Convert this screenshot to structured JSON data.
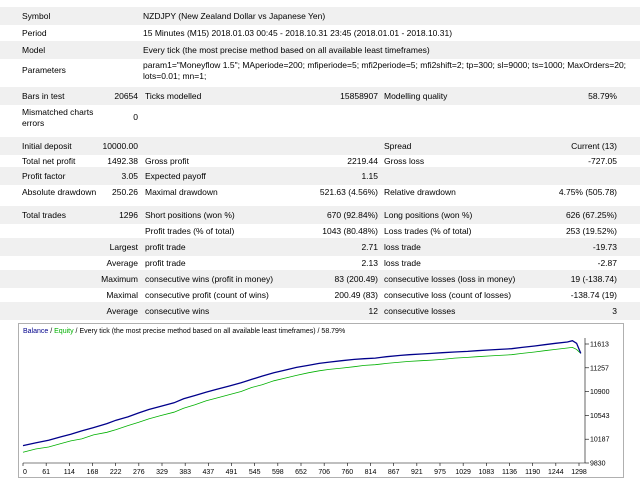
{
  "report": {
    "symbol": {
      "label": "Symbol",
      "value": "NZDJPY (New Zealand Dollar vs Japanese Yen)"
    },
    "period": {
      "label": "Period",
      "value": "15 Minutes (M15) 2018.01.03 00:45 - 2018.10.31 23:45 (2018.01.01 - 2018.10.31)"
    },
    "model": {
      "label": "Model",
      "value": "Every tick (the most precise method based on all available least timeframes)"
    },
    "parameters": {
      "label": "Parameters",
      "line1": "param1=\"Moneyflow 1.5\"; MAperiode=200; mfiperiode=5; mfi2periode=5; mfi2shift=2; tp=300; sl=9000; ts=1000; MaxOrders=20;",
      "line2": "lots=0.01; mn=1;"
    },
    "bars": {
      "label": "Bars in test",
      "value": "20654",
      "ticks_label": "Ticks modelled",
      "ticks_value": "15858907",
      "quality_label": "Modelling quality",
      "quality_value": "58.79%"
    },
    "mismatched": {
      "label_line1": "Mismatched charts",
      "label_line2": "errors",
      "value": "0"
    },
    "deposit": {
      "label": "Initial deposit",
      "value": "10000.00",
      "spread_label": "Spread",
      "spread_value": "Current (13)"
    },
    "net": {
      "label": "Total net profit",
      "value": "1492.38",
      "gp_label": "Gross profit",
      "gp_value": "2219.44",
      "gl_label": "Gross loss",
      "gl_value": "-727.05"
    },
    "pf": {
      "label": "Profit factor",
      "value": "3.05",
      "ep_label": "Expected payoff",
      "ep_value": "1.15"
    },
    "dd": {
      "label": "Absolute drawdown",
      "value": "250.26",
      "max_label": "Maximal drawdown",
      "max_value": "521.63 (4.56%)",
      "rel_label": "Relative drawdown",
      "rel_value": "4.75% (505.78)"
    },
    "trades": {
      "label": "Total trades",
      "value": "1296",
      "short_label": "Short positions (won %)",
      "short_value": "670 (92.84%)",
      "long_label": "Long positions (won %)",
      "long_value": "626 (67.25%)"
    },
    "ptrades": {
      "profit_label": "Profit trades (% of total)",
      "profit_value": "1043 (80.48%)",
      "loss_label": "Loss trades (% of total)",
      "loss_value": "253 (19.52%)"
    },
    "largest": {
      "prefix": "Largest",
      "profit_label": "profit trade",
      "profit_value": "2.71",
      "loss_label": "loss trade",
      "loss_value": "-19.73"
    },
    "average": {
      "prefix": "Average",
      "profit_label": "profit trade",
      "profit_value": "2.13",
      "loss_label": "loss trade",
      "loss_value": "-2.87"
    },
    "maximum": {
      "prefix": "Maximum",
      "wins_label": "consecutive wins (profit in money)",
      "wins_value": "83 (200.49)",
      "losses_label": "consecutive losses (loss in money)",
      "losses_value": "19 (-138.74)"
    },
    "maximal": {
      "prefix": "Maximal",
      "profit_label": "consecutive profit (count of wins)",
      "profit_value": "200.49 (83)",
      "loss_label": "consecutive loss (count of losses)",
      "loss_value": "-138.74 (19)"
    },
    "avgcons": {
      "prefix": "Average",
      "wins_label": "consecutive wins",
      "wins_value": "12",
      "losses_label": "consecutive losses",
      "losses_value": "3"
    }
  },
  "chart_data": {
    "type": "line",
    "legend_balance": "Balance",
    "legend_sep": " / ",
    "legend_equity": "Equity",
    "legend_rest": " / Every tick (the most precise method based on all available least timeframes) / 58.79%",
    "y_ticks": [
      "11613",
      "11257",
      "10900",
      "10543",
      "10187",
      "9830"
    ],
    "x_ticks": [
      "0",
      "61",
      "114",
      "168",
      "222",
      "276",
      "329",
      "383",
      "437",
      "491",
      "545",
      "598",
      "652",
      "706",
      "760",
      "814",
      "867",
      "921",
      "975",
      "1029",
      "1083",
      "1136",
      "1190",
      "1244",
      "1298"
    ],
    "ylim": [
      9830,
      11700
    ],
    "xlim": [
      0,
      1340
    ],
    "balance_color": "#00008b",
    "equity_color": "#00b000",
    "series": [
      {
        "name": "Balance",
        "x": [
          0,
          30,
          61,
          90,
          114,
          140,
          168,
          200,
          222,
          250,
          276,
          300,
          329,
          360,
          383,
          410,
          437,
          460,
          491,
          520,
          545,
          570,
          598,
          625,
          652,
          680,
          706,
          730,
          760,
          790,
          814,
          840,
          867,
          900,
          921,
          950,
          975,
          1000,
          1029,
          1060,
          1083,
          1110,
          1136,
          1165,
          1190,
          1220,
          1244,
          1270,
          1298,
          1310,
          1320,
          1330
        ],
        "y": [
          10090,
          10130,
          10170,
          10220,
          10260,
          10310,
          10360,
          10420,
          10470,
          10520,
          10580,
          10630,
          10680,
          10730,
          10790,
          10840,
          10890,
          10930,
          10980,
          11030,
          11080,
          11130,
          11180,
          11220,
          11260,
          11290,
          11320,
          11340,
          11360,
          11380,
          11390,
          11400,
          11420,
          11440,
          11450,
          11460,
          11470,
          11480,
          11490,
          11500,
          11510,
          11520,
          11530,
          11540,
          11560,
          11580,
          11600,
          11620,
          11640,
          11660,
          11620,
          11470
        ]
      },
      {
        "name": "Equity",
        "x": [
          0,
          30,
          61,
          90,
          114,
          140,
          168,
          200,
          222,
          250,
          276,
          300,
          329,
          360,
          383,
          410,
          437,
          460,
          491,
          520,
          545,
          570,
          598,
          625,
          652,
          680,
          706,
          730,
          760,
          790,
          814,
          840,
          867,
          900,
          921,
          950,
          975,
          1000,
          1029,
          1060,
          1083,
          1110,
          1136,
          1165,
          1190,
          1220,
          1244,
          1270,
          1298,
          1310,
          1320,
          1330
        ],
        "y": [
          9990,
          10040,
          10070,
          10120,
          10160,
          10190,
          10250,
          10290,
          10330,
          10390,
          10440,
          10490,
          10540,
          10590,
          10650,
          10700,
          10760,
          10800,
          10850,
          10900,
          10960,
          11000,
          11060,
          11100,
          11140,
          11180,
          11210,
          11230,
          11250,
          11270,
          11290,
          11300,
          11320,
          11340,
          11350,
          11360,
          11370,
          11380,
          11400,
          11410,
          11420,
          11430,
          11440,
          11450,
          11470,
          11490,
          11510,
          11530,
          11550,
          11560,
          11530,
          11470
        ]
      }
    ]
  }
}
